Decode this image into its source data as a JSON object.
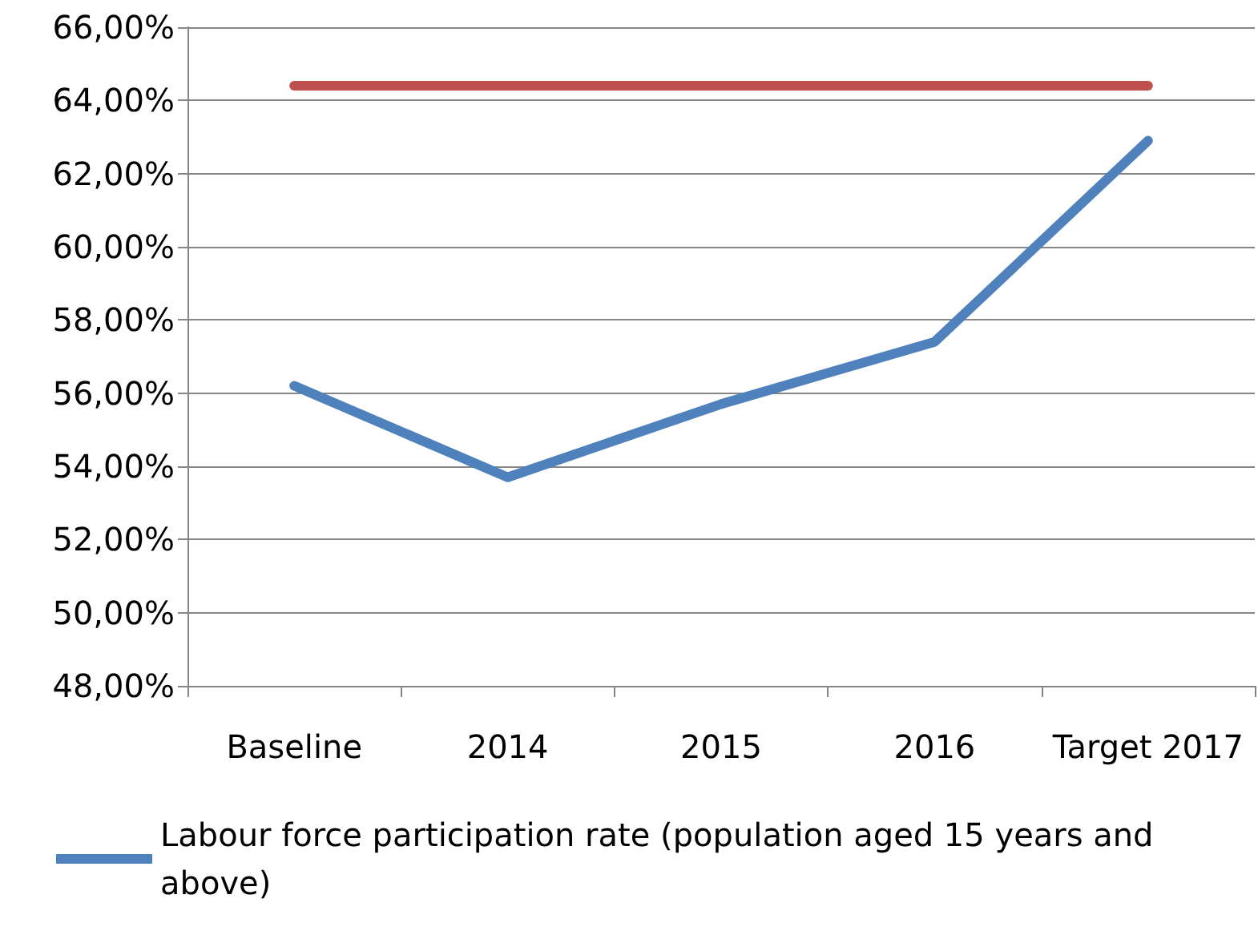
{
  "chart_data": {
    "type": "line",
    "categories": [
      "Baseline",
      "2014",
      "2015",
      "2016",
      "Target 2017"
    ],
    "series": [
      {
        "name": "Labour force participation rate (population aged 15 years and above)",
        "color": "#4f81bd",
        "values": [
          56.2,
          53.7,
          55.7,
          57.4,
          62.9
        ]
      },
      {
        "color": "#c0504d",
        "values": [
          64.4,
          64.4,
          64.4,
          64.4,
          64.4
        ]
      }
    ],
    "ylim": [
      48,
      66
    ],
    "yticks": [
      {
        "value": 48,
        "label": "48,00%"
      },
      {
        "value": 50,
        "label": "50,00%"
      },
      {
        "value": 52,
        "label": "52,00%"
      },
      {
        "value": 54,
        "label": "54,00%"
      },
      {
        "value": 56,
        "label": "56,00%"
      },
      {
        "value": 58,
        "label": "58,00%"
      },
      {
        "value": 60,
        "label": "60,00%"
      },
      {
        "value": 62,
        "label": "62,00%"
      },
      {
        "value": 64,
        "label": "64,00%"
      },
      {
        "value": 66,
        "label": "66,00%"
      }
    ],
    "grid": "y",
    "legend": "bottom",
    "marker": "none",
    "line_style": "solid"
  }
}
